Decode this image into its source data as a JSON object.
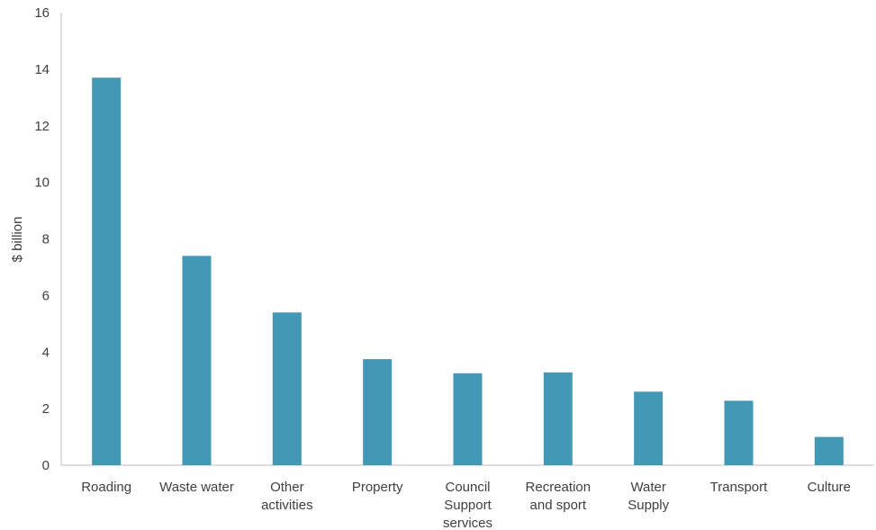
{
  "chart_data": {
    "type": "bar",
    "ylabel": "$ billion",
    "xlabel": "",
    "ylim": [
      0,
      16
    ],
    "yticks": [
      "0",
      "2",
      "4",
      "6",
      "8",
      "10",
      "12",
      "14",
      "16"
    ],
    "categories": [
      [
        "Roading"
      ],
      [
        "Waste water"
      ],
      [
        "Other",
        "activities"
      ],
      [
        "Property"
      ],
      [
        "Council",
        "Support",
        "services"
      ],
      [
        "Recreation",
        "and sport"
      ],
      [
        "Water",
        "Supply"
      ],
      [
        "Transport"
      ],
      [
        "Culture"
      ]
    ],
    "values": [
      13.7,
      7.4,
      5.4,
      3.75,
      3.25,
      3.28,
      2.6,
      2.28,
      1.0
    ],
    "bar_color": "#4399B5",
    "axis_color": "#BFBFBF",
    "grid": false,
    "legend": "none"
  }
}
